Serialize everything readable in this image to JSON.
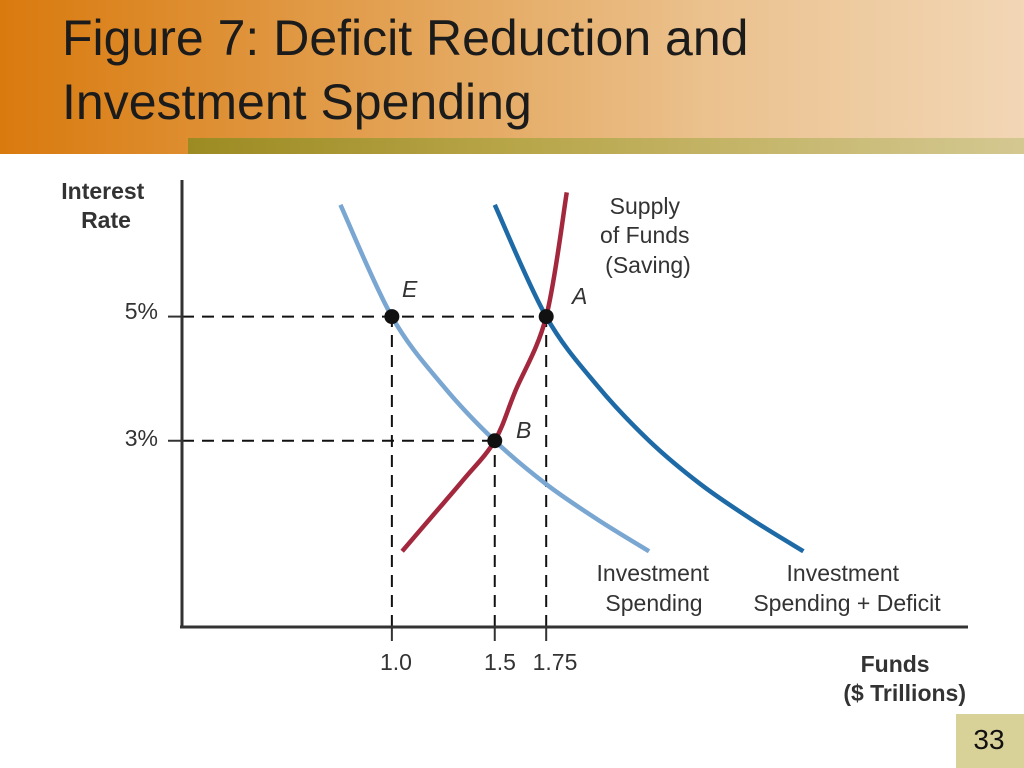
{
  "slide": {
    "title_line1": "Figure 7:  Deficit Reduction and",
    "title_line2": "Investment Spending",
    "page_number": "33",
    "colors": {
      "title_gradient_start": "#d97a0e",
      "title_gradient_end": "#f2d6b5",
      "underline": "#b8a64a",
      "page_box": "#d8d198"
    }
  },
  "chart_data": {
    "type": "line",
    "ylabel": [
      "Interest",
      "Rate"
    ],
    "xlabel": [
      "Funds",
      "($ Trillions)"
    ],
    "x_ticks": [
      {
        "value": 1.0,
        "label": "1.0"
      },
      {
        "value": 1.5,
        "label": "1.5"
      },
      {
        "value": 1.75,
        "label": "1.75"
      }
    ],
    "y_ticks": [
      {
        "value": 5,
        "label": "5%"
      },
      {
        "value": 3,
        "label": "3%"
      }
    ],
    "xlim": [
      -0.02,
      3.8
    ],
    "ylim": [
      0,
      7.2
    ],
    "grid": false,
    "series": [
      {
        "name_lines": [
          "Investment",
          "Spending"
        ],
        "color": "#7aa6d2",
        "x": [
          0.75,
          1.0,
          1.25,
          1.5,
          1.75,
          2.0,
          2.25
        ],
        "y": [
          6.8,
          5.0,
          3.88,
          3.0,
          2.3,
          1.73,
          1.22
        ]
      },
      {
        "name_lines": [
          "Investment",
          "Spending + Deficit"
        ],
        "color": "#1e6aa6",
        "x": [
          1.5,
          1.75,
          2.0,
          2.25,
          2.5,
          2.75,
          3.0
        ],
        "y": [
          6.8,
          5.0,
          3.88,
          3.0,
          2.3,
          1.73,
          1.22
        ]
      },
      {
        "name_lines": [
          "Supply",
          "of Funds",
          "(Saving)"
        ],
        "color": "#a3283e",
        "x": [
          1.05,
          1.2,
          1.35,
          1.5,
          1.6,
          1.75,
          1.85
        ],
        "y": [
          1.22,
          1.8,
          2.38,
          3.0,
          3.8,
          5.0,
          7.0
        ]
      }
    ],
    "points": [
      {
        "label": "E",
        "x": 1.0,
        "y": 5
      },
      {
        "label": "A",
        "x": 1.75,
        "y": 5
      },
      {
        "label": "B",
        "x": 1.5,
        "y": 3
      }
    ]
  }
}
